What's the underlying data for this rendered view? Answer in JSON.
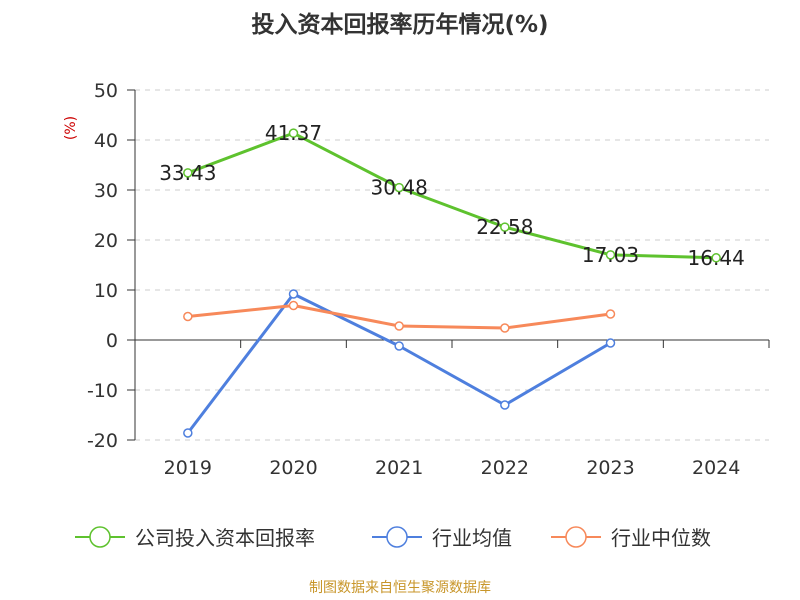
{
  "chart_data": {
    "type": "line",
    "title": "投入资本回报率历年情况(%)",
    "ylabel": "(%)",
    "categories": [
      "2019",
      "2020",
      "2021",
      "2022",
      "2023",
      "2024"
    ],
    "ylim": [
      -20,
      50
    ],
    "yticks": [
      "50",
      "40",
      "30",
      "20",
      "10",
      "0",
      "-10",
      "-20"
    ],
    "grid": true,
    "series": [
      {
        "name": "公司投入资本回报率",
        "color": "#5ec22e",
        "values": [
          33.43,
          41.37,
          30.48,
          22.58,
          17.03,
          16.44
        ],
        "labels": [
          "33.43",
          "41.37",
          "30.48",
          "22.58",
          "17.03",
          "16.44"
        ]
      },
      {
        "name": "行业均值",
        "color": "#4e7fde",
        "values": [
          -18.6,
          9.2,
          -1.2,
          -13.0,
          -0.6,
          null
        ]
      },
      {
        "name": "行业中位数",
        "color": "#f7895a",
        "values": [
          4.7,
          6.9,
          2.8,
          2.4,
          5.2,
          null
        ]
      }
    ],
    "legend_position": "bottom"
  },
  "source_text": "制图数据来自恒生聚源数据库",
  "colors": {
    "ylabel": "#cc0000",
    "source": "#c8962a",
    "grid": "#cccccc",
    "axis": "#333333"
  }
}
